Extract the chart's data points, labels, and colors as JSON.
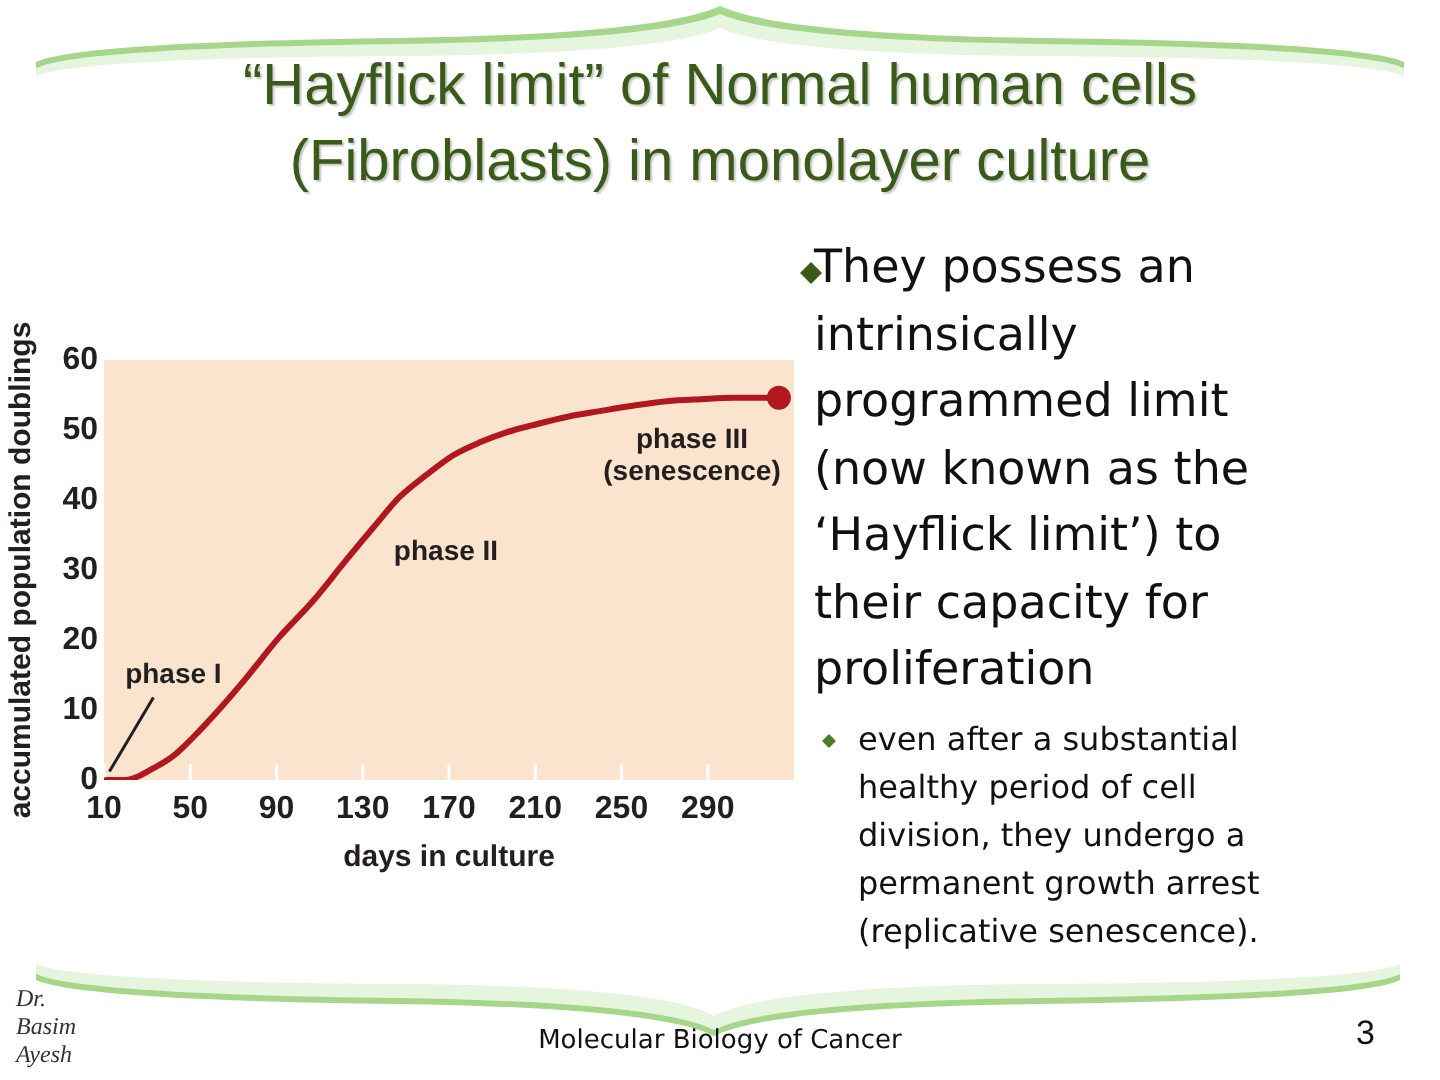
{
  "chart_data": {
    "type": "line",
    "title": "“Hayflick limit” of Normal human cells (Fibroblasts) in monolayer culture",
    "xlabel": "days in culture",
    "ylabel": "accumulated population doublings",
    "series": [
      {
        "color": "#b0171f",
        "marker": "none",
        "x": [
          11,
          20,
          33,
          42,
          51,
          64,
          76,
          91,
          107,
          122,
          135,
          147,
          160,
          172,
          184,
          197,
          209,
          225,
          240,
          256,
          271,
          287,
          302,
          323
        ],
        "values": [
          0,
          0,
          1.7,
          3.4,
          6,
          10.3,
          14.6,
          20.3,
          25.6,
          31.3,
          36.1,
          40.4,
          43.7,
          46.4,
          48.2,
          49.7,
          50.7,
          51.9,
          52.7,
          53.5,
          54.1,
          54.4,
          54.6,
          54.6
        ]
      },
      {
        "type": "scatter",
        "color": "#b0171f",
        "marker": "circle",
        "x": [
          323
        ],
        "values": [
          54.6
        ]
      }
    ],
    "xlim": [
      10,
      330
    ],
    "xticks": [
      10,
      50,
      90,
      130,
      170,
      210,
      250,
      290
    ],
    "ylim": [
      0,
      60
    ],
    "yticks": [
      0,
      10,
      20,
      30,
      40,
      50,
      60
    ],
    "grid": false,
    "annotations": [
      {
        "text": "phase I",
        "x": 12.5,
        "y": 1.2
      },
      "phase II",
      "phase III\n(senescence)",
      "They possess an intrinsically programmed limit (now known as the ‘Hayflick limit’) to their capacity for proliferation",
      "even after a substantial healthy period of cell division, they undergo a permanent growth arrest (replicative senescence).",
      "Dr. Basim Ayesh",
      "Molecular Biology of Cancer",
      "3"
    ]
  }
}
